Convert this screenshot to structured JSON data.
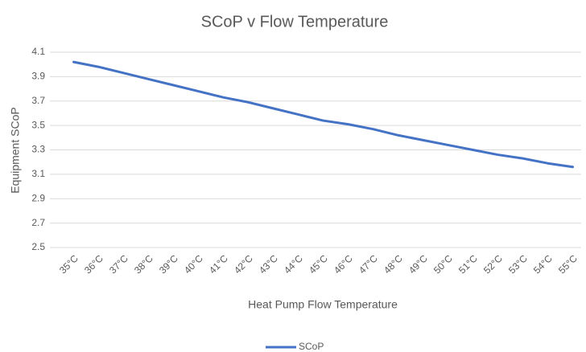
{
  "chart_data": {
    "type": "line",
    "title": "SCoP v Flow Temperature",
    "x_label": "Heat Pump Flow Temperature",
    "y_label": "Equipment SCoP",
    "categories": [
      "35°C",
      "36°C",
      "37°C",
      "38°C",
      "39°C",
      "40°C",
      "41°C",
      "42°C",
      "43°C",
      "44°C",
      "45°C",
      "46°C",
      "47°C",
      "48°C",
      "49°C",
      "50°C",
      "51°C",
      "52°C",
      "53°C",
      "54°C",
      "55°C"
    ],
    "series": [
      {
        "name": "SCoP",
        "color": "#4472c4",
        "values": [
          4.02,
          3.98,
          3.93,
          3.88,
          3.83,
          3.78,
          3.73,
          3.69,
          3.64,
          3.59,
          3.54,
          3.51,
          3.47,
          3.42,
          3.38,
          3.34,
          3.3,
          3.26,
          3.23,
          3.19,
          3.16
        ]
      }
    ],
    "ylim": [
      2.5,
      4.1
    ],
    "yticks": [
      2.5,
      2.7,
      2.9,
      3.1,
      3.3,
      3.5,
      3.7,
      3.9,
      4.1
    ],
    "grid": true,
    "legend": "bottom"
  }
}
